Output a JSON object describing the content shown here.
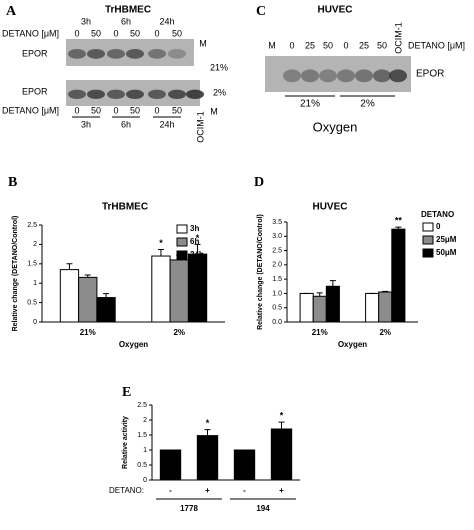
{
  "blots": {
    "a": {
      "label": "A",
      "title": "TrHBMEC",
      "top_times": [
        "3h",
        "6h",
        "24h"
      ],
      "top_detano_label": "DETANO [μM]",
      "top_doses": [
        "0",
        "50",
        "0",
        "50",
        "0",
        "50"
      ],
      "marker": "M",
      "band_top": "EPOR",
      "condition_top": "21%",
      "band_bottom": "EPOR",
      "condition_bottom": "2%",
      "bottom_detano_label": "DETANO [μM]",
      "bottom_doses": [
        "0",
        "50",
        "0",
        "50",
        "0",
        "50"
      ],
      "bottom_times": [
        "3h",
        "6h",
        "24h"
      ],
      "control": "OCIM-1",
      "bottom_marker": "M"
    },
    "c": {
      "label": "C",
      "title": "HUVEC",
      "lanes": [
        "M",
        "0",
        "25",
        "50",
        "0",
        "25",
        "50"
      ],
      "control": "OCIM-1",
      "detano_label": "DETANO [μM]",
      "band": "EPOR",
      "conditions": [
        "21%",
        "2%"
      ],
      "axis_label": "Oxygen"
    }
  },
  "chart_data": [
    {
      "type": "bar",
      "panel_label": "B",
      "title": "TrHBMEC",
      "y_label": "Relative change (DETANO/Control)",
      "x_label": "Oxygen",
      "categories": [
        "21%",
        "2%"
      ],
      "series": [
        {
          "name": "3h",
          "color": "#ffffff",
          "values": [
            1.35,
            1.7
          ],
          "errors": [
            0.15,
            0.17
          ]
        },
        {
          "name": "6h",
          "color": "#8c8c8c",
          "values": [
            1.15,
            1.6
          ],
          "errors": [
            0.06,
            0.12
          ]
        },
        {
          "name": "24h",
          "color": "#000000",
          "values": [
            0.63,
            1.75
          ],
          "errors": [
            0.1,
            0.25
          ]
        }
      ],
      "ylim": [
        0,
        2.5
      ],
      "yticks": [
        0,
        0.5,
        1,
        1.5,
        2,
        2.5
      ],
      "annotations": [
        {
          "text": "*",
          "series": 0,
          "index": 1
        },
        {
          "text": "*",
          "series": 2,
          "index": 1
        }
      ]
    },
    {
      "type": "bar",
      "panel_label": "D",
      "title": "HUVEC",
      "y_label": "Relative change (DETANO/Control)",
      "x_label": "Oxygen",
      "legend_title": "DETANO",
      "categories": [
        "21%",
        "2%"
      ],
      "series": [
        {
          "name": "0",
          "color": "#ffffff",
          "values": [
            1.0,
            1.0
          ],
          "errors": [
            0,
            0
          ]
        },
        {
          "name": "25μM",
          "color": "#8c8c8c",
          "values": [
            0.9,
            1.05
          ],
          "errors": [
            0.12,
            0.02
          ]
        },
        {
          "name": "50μM",
          "color": "#000000",
          "values": [
            1.25,
            3.25
          ],
          "errors": [
            0.2,
            0.07
          ]
        }
      ],
      "ylim": [
        0,
        3.5
      ],
      "yticks": [
        {
          "value": 0,
          "label": "0.0"
        },
        0.5,
        {
          "value": 1,
          "label": "1.0"
        },
        1.5,
        {
          "value": 2,
          "label": "2.0"
        },
        2.5,
        {
          "value": 3,
          "label": "3.0"
        },
        3.5
      ],
      "annotations": [
        {
          "text": "**",
          "series": 2,
          "index": 1
        }
      ]
    },
    {
      "type": "bar",
      "panel_label": "E",
      "y_label": "Relative activity",
      "category_label": "DETANO:",
      "categories": [
        "-",
        "+",
        "-",
        "+"
      ],
      "groups": [
        "1778",
        "194"
      ],
      "series": [
        {
          "color": "#000000",
          "values": [
            1,
            1.48,
            1,
            1.7
          ],
          "errors": [
            0,
            0.2,
            0,
            0.23
          ]
        }
      ],
      "ylim": [
        0,
        2.5
      ],
      "yticks": [
        0,
        0.5,
        1,
        1.5,
        2,
        2.5
      ],
      "annotations": [
        {
          "text": "*",
          "series": 0,
          "index": 1
        },
        {
          "text": "*",
          "series": 0,
          "index": 3
        }
      ]
    }
  ]
}
